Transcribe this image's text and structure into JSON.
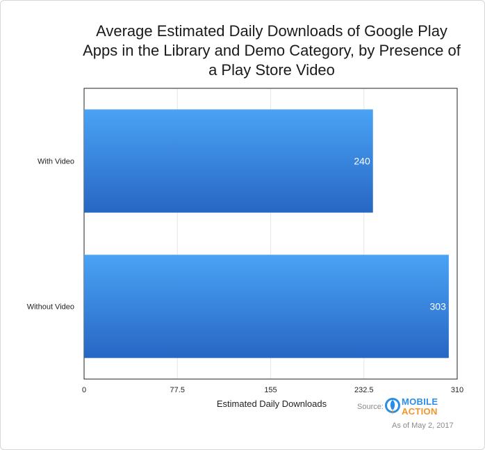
{
  "chart_data": {
    "type": "bar",
    "orientation": "horizontal",
    "title": "Average Estimated Daily Downloads of Google Play Apps in the Library and Demo Category, by Presence of a Play Store Video",
    "xlabel": "Estimated Daily Downloads",
    "ylabel": "",
    "categories": [
      "With Video",
      "Without Video"
    ],
    "values": [
      240,
      303
    ],
    "value_labels": [
      "240",
      "303"
    ],
    "xlim": [
      0,
      310
    ],
    "x_ticks": [
      0,
      77.5,
      155,
      232.5,
      310
    ],
    "x_tick_labels": [
      "0",
      "77.5",
      "155",
      "232.5",
      "310"
    ],
    "grid": true,
    "legend": "none",
    "colors": {
      "bar_top": "#4aa3f5",
      "bar_bottom": "#2766c4",
      "grid": "#e6e6e6"
    }
  },
  "footer": {
    "source_label": "Source:",
    "logo_line1": "MOBILE",
    "logo_line2": "ACTION",
    "logo_icon": "rocket-icon",
    "as_of": "As of May 2, 2017"
  }
}
